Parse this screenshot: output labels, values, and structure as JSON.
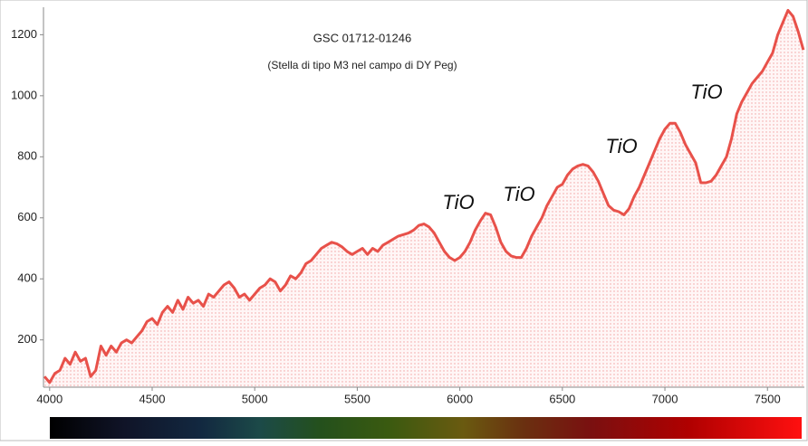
{
  "chart_data": {
    "type": "line",
    "title": "GSC 01712-01246",
    "subtitle": "(Stella di tipo M3 nel campo di DY Peg)",
    "annotations": [
      "TiO",
      "TiO",
      "TiO",
      "TiO"
    ],
    "x": [
      3975,
      4000,
      4025,
      4050,
      4075,
      4100,
      4125,
      4150,
      4175,
      4200,
      4225,
      4250,
      4275,
      4300,
      4325,
      4350,
      4375,
      4400,
      4425,
      4450,
      4475,
      4500,
      4525,
      4550,
      4575,
      4600,
      4625,
      4650,
      4675,
      4700,
      4725,
      4750,
      4775,
      4800,
      4825,
      4850,
      4875,
      4900,
      4925,
      4950,
      4975,
      5000,
      5025,
      5050,
      5075,
      5100,
      5125,
      5150,
      5175,
      5200,
      5225,
      5250,
      5275,
      5300,
      5325,
      5350,
      5375,
      5400,
      5425,
      5450,
      5475,
      5500,
      5525,
      5550,
      5575,
      5600,
      5625,
      5650,
      5675,
      5700,
      5725,
      5750,
      5775,
      5800,
      5825,
      5850,
      5875,
      5900,
      5925,
      5950,
      5975,
      6000,
      6025,
      6050,
      6075,
      6100,
      6125,
      6150,
      6175,
      6200,
      6225,
      6250,
      6275,
      6300,
      6325,
      6350,
      6375,
      6400,
      6425,
      6450,
      6475,
      6500,
      6525,
      6550,
      6575,
      6600,
      6625,
      6650,
      6675,
      6700,
      6725,
      6750,
      6775,
      6800,
      6825,
      6850,
      6875,
      6900,
      6925,
      6950,
      6975,
      7000,
      7025,
      7050,
      7075,
      7100,
      7125,
      7150,
      7175,
      7200,
      7225,
      7250,
      7275,
      7300,
      7325,
      7350,
      7375,
      7400,
      7425,
      7450,
      7475,
      7500,
      7525,
      7550,
      7575,
      7600,
      7625,
      7650,
      7675
    ],
    "series": [
      {
        "color": "#e8514a",
        "values": [
          80,
          60,
          90,
          100,
          140,
          120,
          160,
          130,
          140,
          80,
          100,
          180,
          150,
          180,
          160,
          190,
          200,
          190,
          210,
          230,
          260,
          270,
          250,
          290,
          310,
          290,
          330,
          300,
          340,
          320,
          330,
          310,
          350,
          340,
          360,
          380,
          390,
          370,
          340,
          350,
          330,
          350,
          370,
          380,
          400,
          390,
          360,
          380,
          410,
          400,
          420,
          450,
          460,
          480,
          500,
          510,
          520,
          515,
          505,
          490,
          480,
          490,
          500,
          480,
          500,
          490,
          510,
          520,
          530,
          540,
          545,
          550,
          560,
          575,
          580,
          570,
          550,
          520,
          490,
          470,
          460,
          470,
          490,
          520,
          560,
          590,
          615,
          610,
          570,
          520,
          490,
          475,
          470,
          470,
          500,
          540,
          570,
          600,
          640,
          670,
          700,
          710,
          740,
          760,
          770,
          775,
          770,
          750,
          720,
          680,
          640,
          625,
          620,
          610,
          630,
          670,
          700,
          740,
          780,
          820,
          860,
          890,
          910,
          910,
          880,
          840,
          810,
          780,
          715,
          715,
          720,
          740,
          770,
          800,
          860,
          940,
          980,
          1010,
          1040,
          1060,
          1080,
          1110,
          1140,
          1200,
          1240,
          1280,
          1260,
          1210,
          1150
        ]
      }
    ],
    "xlim": [
      3970,
      7680
    ],
    "ylim": [
      45,
      1290
    ],
    "xticks": [
      4000,
      4500,
      5000,
      5500,
      6000,
      6500,
      7000,
      7500
    ],
    "yticks": [
      200,
      400,
      600,
      800,
      1000,
      1200
    ],
    "fill": true
  }
}
